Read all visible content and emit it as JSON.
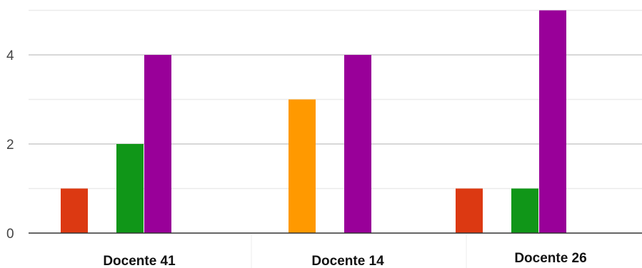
{
  "chart_data": {
    "type": "bar",
    "title": "",
    "xlabel": "",
    "ylabel": "",
    "categories": [
      "Docente 41",
      "Docente 14",
      "Docente 26"
    ],
    "ylim": [
      0,
      5
    ],
    "yticks": [
      0,
      2,
      4
    ],
    "grid": true,
    "legend": "none",
    "series": [
      {
        "color": "#dc3912",
        "values": [
          1,
          0,
          1
        ]
      },
      {
        "color": "#ff9900",
        "values": [
          0,
          3,
          0
        ]
      },
      {
        "color": "#109618",
        "values": [
          2,
          0,
          1
        ]
      },
      {
        "color": "#990099",
        "values": [
          4,
          4,
          5
        ]
      }
    ]
  }
}
